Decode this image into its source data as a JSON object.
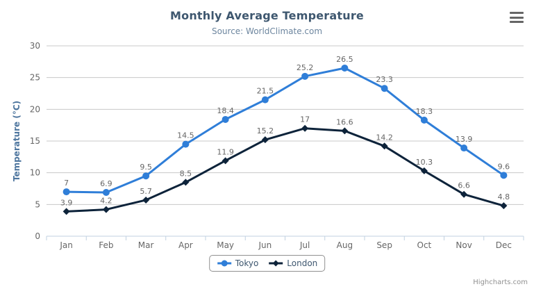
{
  "chart_data": {
    "type": "line",
    "title": "Monthly Average Temperature",
    "subtitle": "Source: WorldClimate.com",
    "categories": [
      "Jan",
      "Feb",
      "Mar",
      "Apr",
      "May",
      "Jun",
      "Jul",
      "Aug",
      "Sep",
      "Oct",
      "Nov",
      "Dec"
    ],
    "series": [
      {
        "name": "Tokyo",
        "color": "#2f7ed8",
        "marker": "circle",
        "values": [
          7,
          6.9,
          9.5,
          14.5,
          18.4,
          21.5,
          25.2,
          26.5,
          23.3,
          18.3,
          13.9,
          9.6
        ]
      },
      {
        "name": "London",
        "color": "#0d233a",
        "marker": "diamond",
        "values": [
          3.9,
          4.2,
          5.7,
          8.5,
          11.9,
          15.2,
          17,
          16.6,
          14.2,
          10.3,
          6.6,
          4.8
        ]
      }
    ],
    "xlabel": "",
    "ylabel": "Temperature (°C)",
    "ylim": [
      0,
      30
    ],
    "ytick_step": 5,
    "grid": true,
    "data_labels": true,
    "legend_position": "bottom"
  },
  "colors": {
    "title": "#3E576F",
    "subtitle": "#6D869F",
    "axis_labels": "#666666",
    "yaxis_title": "#4d759e",
    "gridline": "#C8C8C8",
    "axis_line": "#C0D0E0",
    "legend_border": "#909090",
    "credits_text": "#909090"
  },
  "icons": {
    "export_menu": "hamburger-menu"
  },
  "credits": "Highcharts.com"
}
